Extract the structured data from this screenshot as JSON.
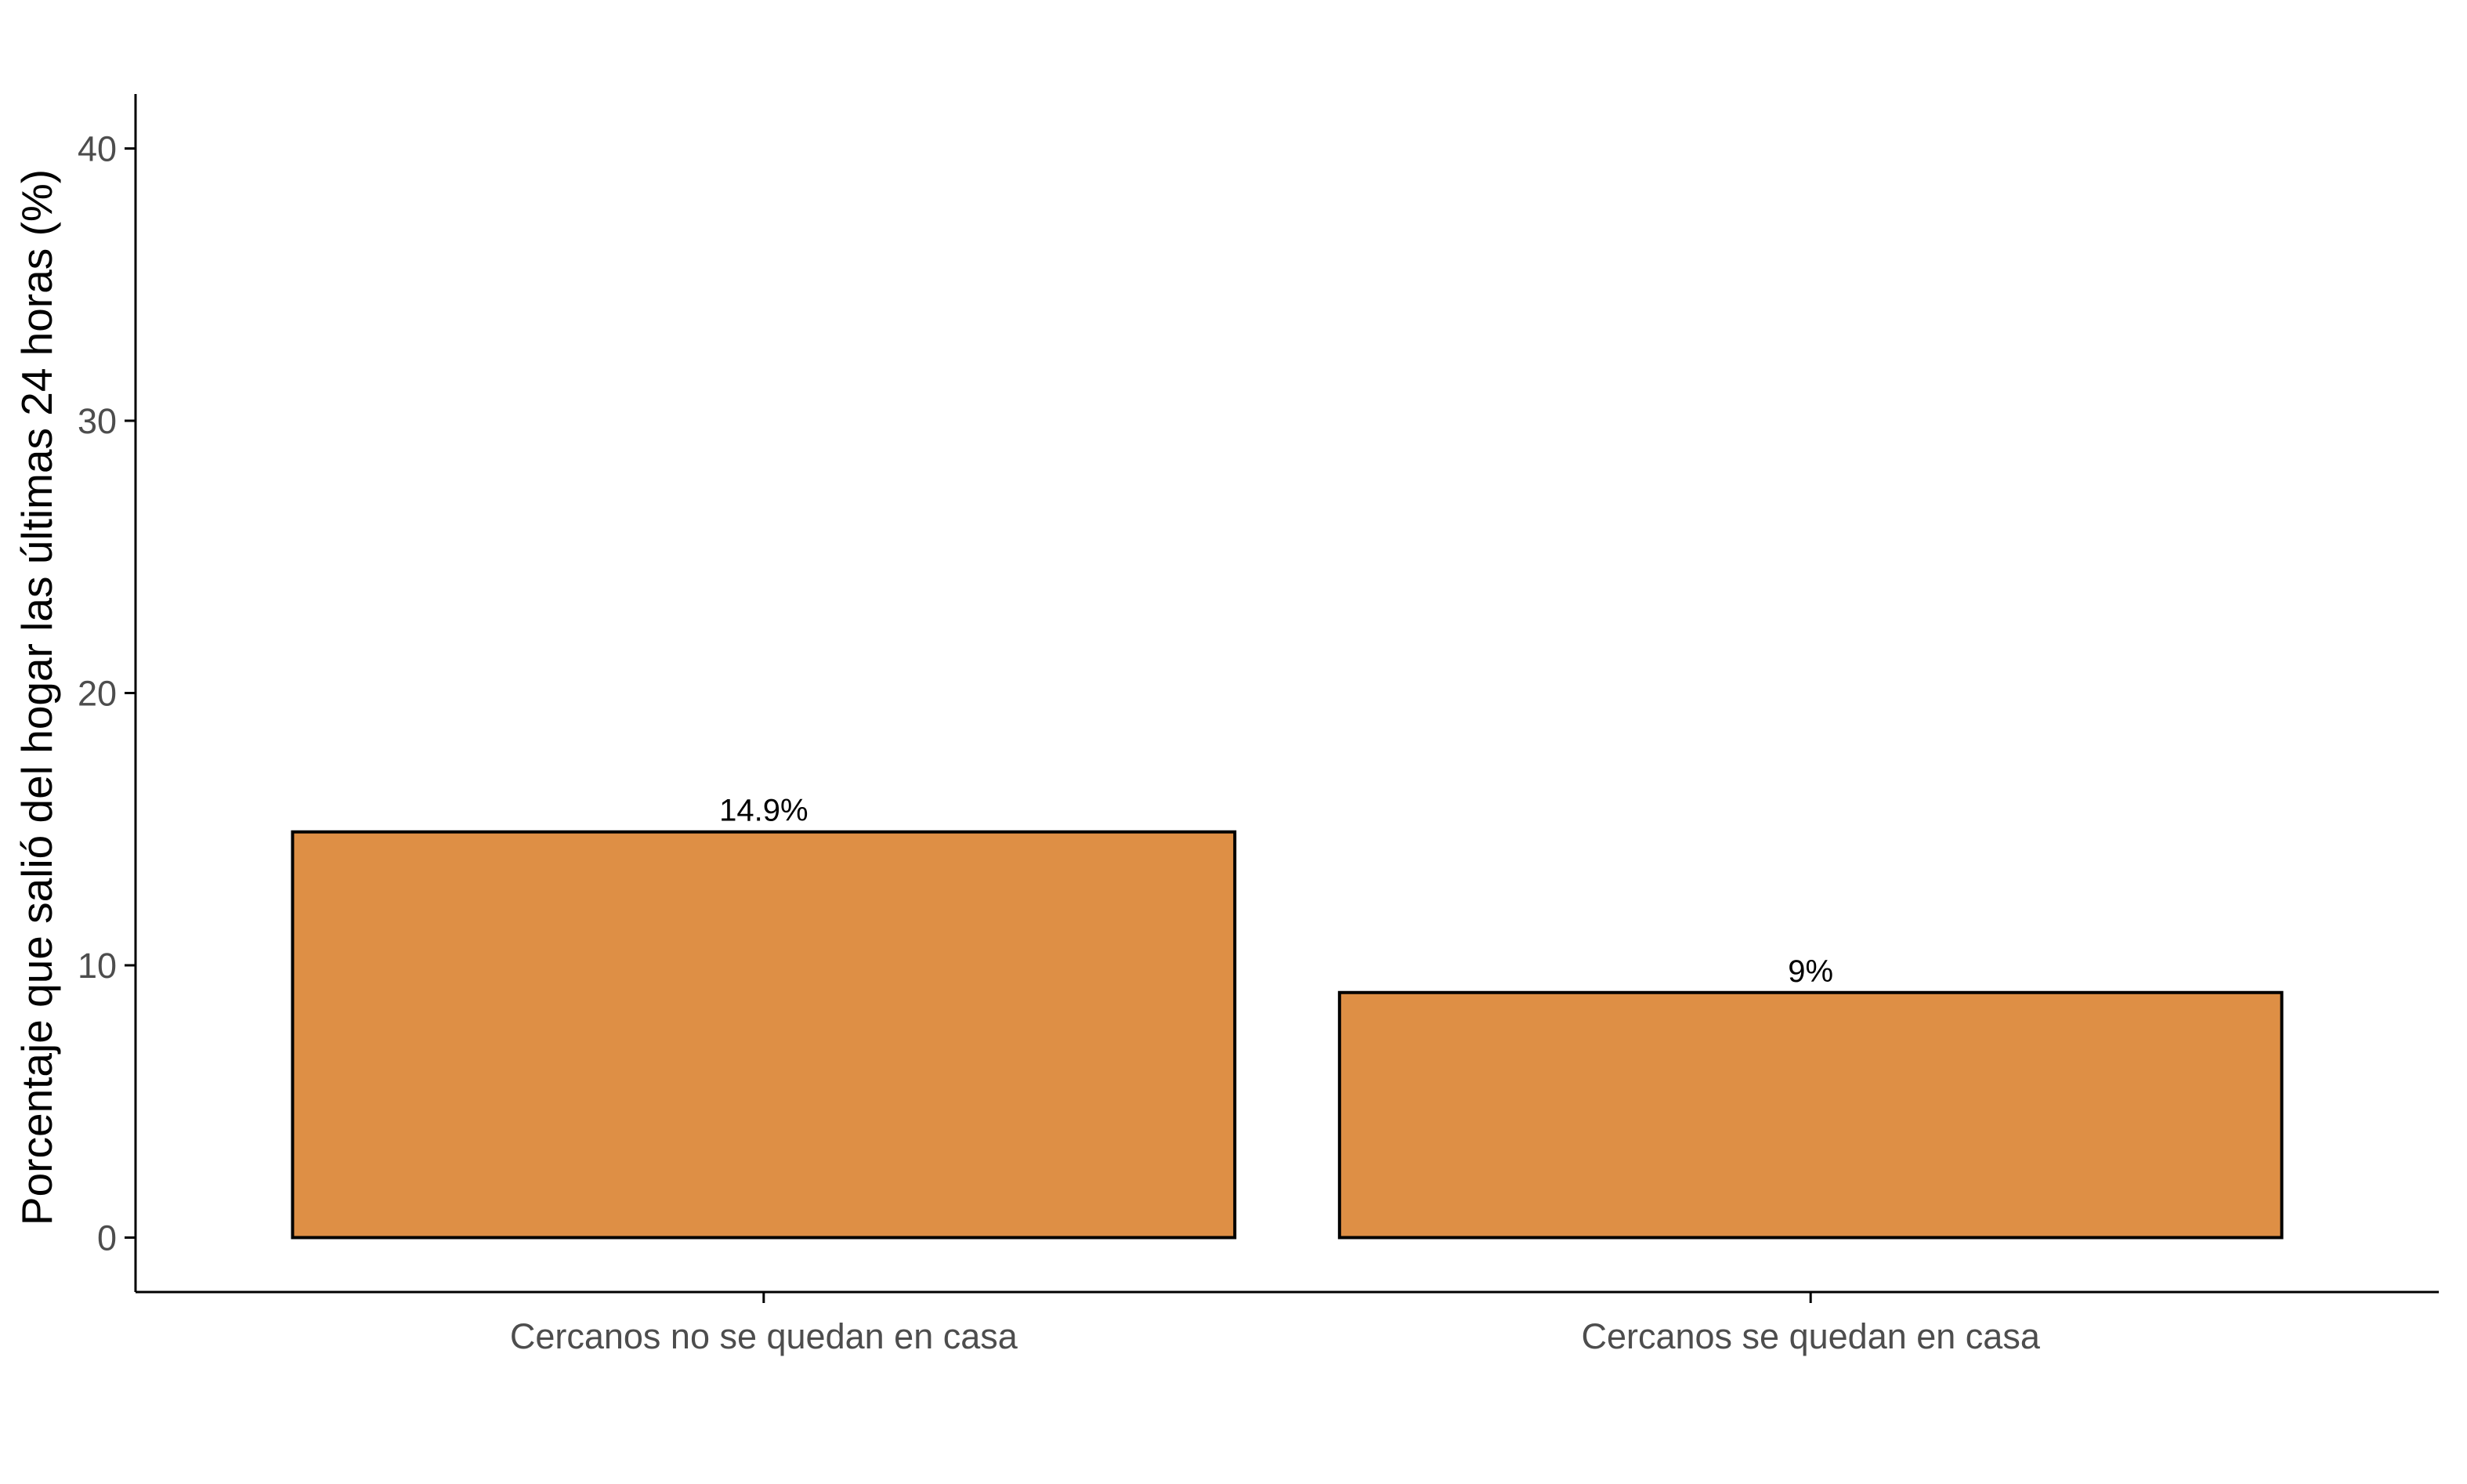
{
  "chart_data": {
    "type": "bar",
    "categories": [
      "Cercanos no se quedan en casa",
      "Cercanos se quedan en casa"
    ],
    "values": [
      14.9,
      9
    ],
    "data_labels": [
      "14.9%",
      "9%"
    ],
    "title": "",
    "xlabel": "",
    "ylabel": "Porcentaje que salió del hogar las últimas 24 horas (%)",
    "ylim": [
      -2,
      42
    ],
    "yticks": [
      0,
      10,
      20,
      30,
      40
    ],
    "ytick_labels": [
      "0",
      "10",
      "20",
      "30",
      "40"
    ],
    "grid": false,
    "legend": "none",
    "colors": {
      "bar_fill": "#DE8F45",
      "bar_stroke": "#000000",
      "axis": "#000000",
      "tick_text": "#4d4d4d"
    }
  }
}
